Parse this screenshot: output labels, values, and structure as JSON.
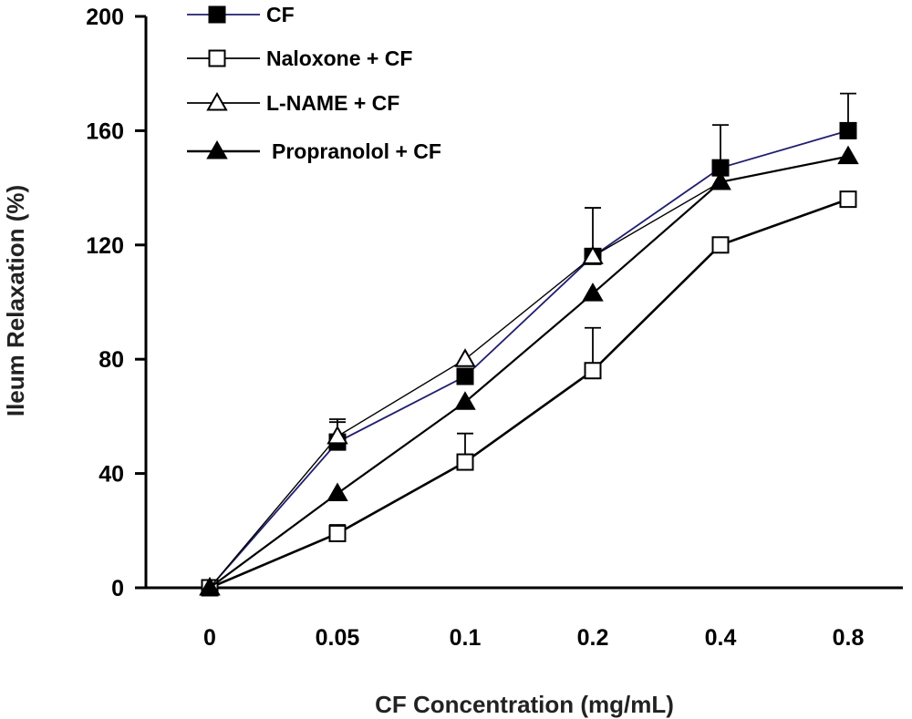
{
  "chart_data": {
    "type": "line",
    "title": "",
    "xlabel": "CF Concentration (mg/mL)",
    "ylabel": "Ileum Relaxation (%)",
    "categories": [
      "0",
      "0.05",
      "0.1",
      "0.2",
      "0.4",
      "0.8"
    ],
    "yticks": [
      "0",
      "40",
      "80",
      "120",
      "160",
      "200"
    ],
    "ylim": [
      0,
      200
    ],
    "grid": false,
    "legend_position": "top-left",
    "series": [
      {
        "name": "CF",
        "marker": "filled-square",
        "color": "#1f1f6e",
        "values": [
          0,
          51,
          74,
          116,
          147,
          160
        ],
        "errors": [
          0,
          8,
          0,
          0,
          15,
          13
        ]
      },
      {
        "name": "Naloxone + CF",
        "marker": "open-square",
        "color": "#000000",
        "values": [
          0,
          19,
          44,
          76,
          120,
          136
        ],
        "errors": [
          0,
          3,
          10,
          15,
          0,
          0
        ]
      },
      {
        "name": "L-NAME + CF",
        "marker": "open-triangle",
        "color": "#000000",
        "values": [
          0,
          53,
          80,
          116,
          142,
          0
        ],
        "errors": [
          0,
          5,
          0,
          17,
          0,
          0
        ],
        "missing_last": true
      },
      {
        "name": "Propranolol + CF",
        "marker": "filled-triangle",
        "color": "#000000",
        "values": [
          0,
          33,
          65,
          103,
          142,
          151
        ],
        "errors": [
          0,
          0,
          0,
          0,
          0,
          0
        ]
      }
    ]
  }
}
